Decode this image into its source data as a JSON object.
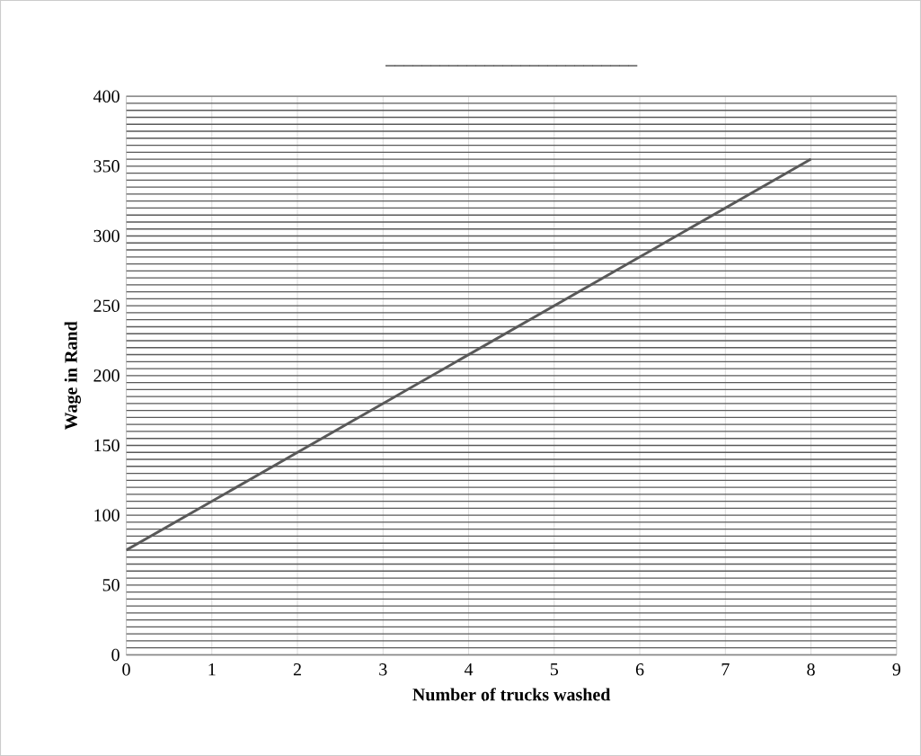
{
  "chart_data": {
    "type": "line",
    "title": "____________________________",
    "xlabel": "Number of trucks washed",
    "ylabel": "Wage in Rand",
    "x": [
      0,
      8
    ],
    "series": [
      {
        "color": "#595959",
        "values": [
          75,
          355
        ]
      }
    ],
    "xlim": [
      0,
      9
    ],
    "xticks": [
      0,
      1,
      2,
      3,
      4,
      5,
      6,
      7,
      8,
      9
    ],
    "ylim": [
      0,
      400
    ],
    "yticks": [
      0,
      50,
      100,
      150,
      200,
      250,
      300,
      350,
      400
    ],
    "grid": true,
    "marker": "none",
    "line_style": "solid"
  }
}
